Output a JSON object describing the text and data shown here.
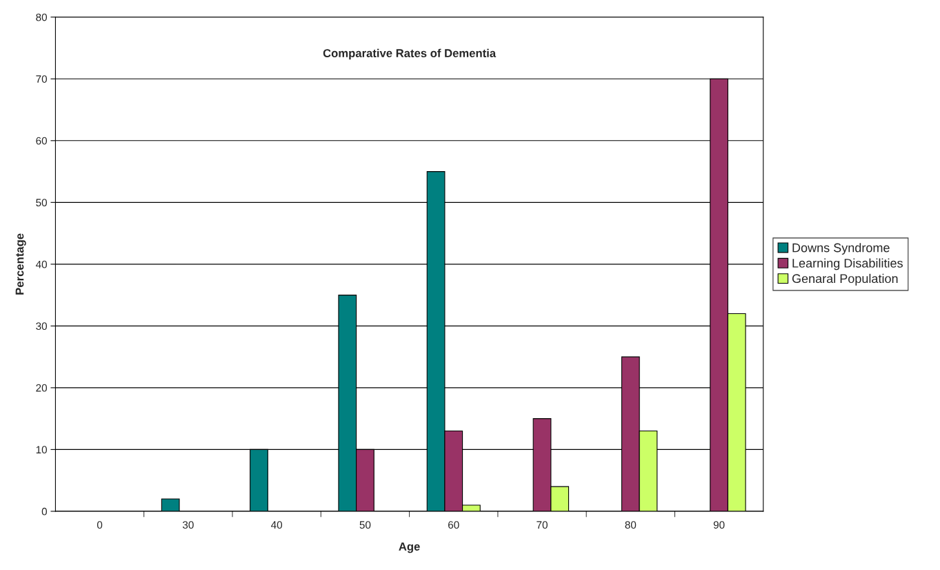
{
  "chart_data": {
    "type": "bar",
    "title": "Comparative Rates of Dementia",
    "xlabel": "Age",
    "ylabel": "Percentage",
    "categories": [
      "0",
      "30",
      "40",
      "50",
      "60",
      "70",
      "80",
      "90"
    ],
    "series": [
      {
        "name": "Downs Syndrome",
        "color": "#008080",
        "values": [
          null,
          2,
          10,
          35,
          55,
          null,
          null,
          null
        ]
      },
      {
        "name": "Learning Disabilities",
        "color": "#993366",
        "values": [
          null,
          null,
          null,
          10,
          13,
          15,
          25,
          70
        ]
      },
      {
        "name": "Genaral Population",
        "color": "#ccff66",
        "values": [
          null,
          null,
          null,
          null,
          1,
          4,
          13,
          32
        ]
      }
    ],
    "ylim": [
      0,
      80
    ],
    "yticks": [
      0,
      10,
      20,
      30,
      40,
      50,
      60,
      70,
      80
    ],
    "grid": "y",
    "legend": "right"
  }
}
